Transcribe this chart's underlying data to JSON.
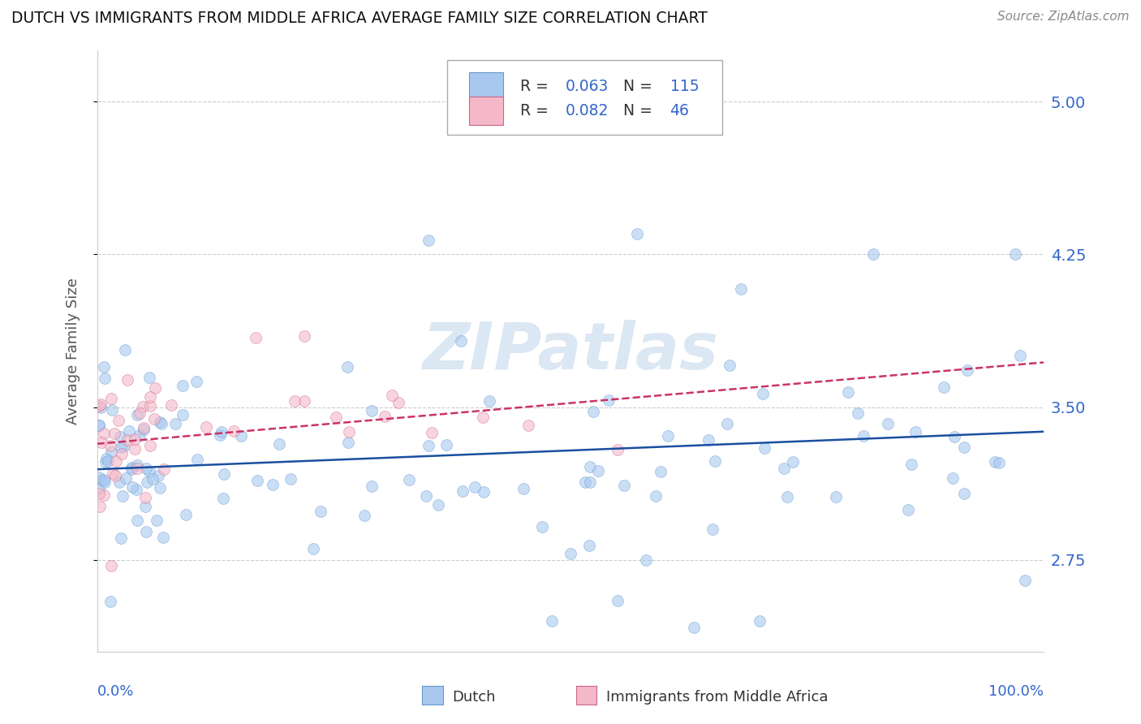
{
  "title": "DUTCH VS IMMIGRANTS FROM MIDDLE AFRICA AVERAGE FAMILY SIZE CORRELATION CHART",
  "source": "Source: ZipAtlas.com",
  "ylabel": "Average Family Size",
  "yticks": [
    2.75,
    3.5,
    4.25,
    5.0
  ],
  "xlim": [
    0.0,
    100.0
  ],
  "ylim": [
    2.3,
    5.25
  ],
  "watermark": "ZIPatlas",
  "legend_label1": "Dutch",
  "legend_label2": "Immigrants from Middle Africa",
  "dutch_color": "#a8c8f0",
  "dutch_edge": "#6699cc",
  "immigrant_color": "#f4b8c8",
  "immigrant_edge": "#cc6688",
  "trend_dutch_color": "#1a4fa0",
  "trend_immigrant_color": "#cc3366",
  "background_color": "#ffffff",
  "grid_color": "#cccccc",
  "title_color": "#111111",
  "source_color": "#888888",
  "tick_color": "#3366cc",
  "r1": "0.063",
  "n1": "115",
  "r2": "0.082",
  "n2": "46",
  "marker_size": 100,
  "marker_alpha": 0.6,
  "trend_lw": 1.8,
  "trend_dutch_x0": 0.0,
  "trend_dutch_y0": 3.195,
  "trend_dutch_x1": 100.0,
  "trend_dutch_y1": 3.38,
  "trend_imm_x0": 0.0,
  "trend_imm_y0": 3.32,
  "trend_imm_x1": 100.0,
  "trend_imm_y1": 3.72
}
